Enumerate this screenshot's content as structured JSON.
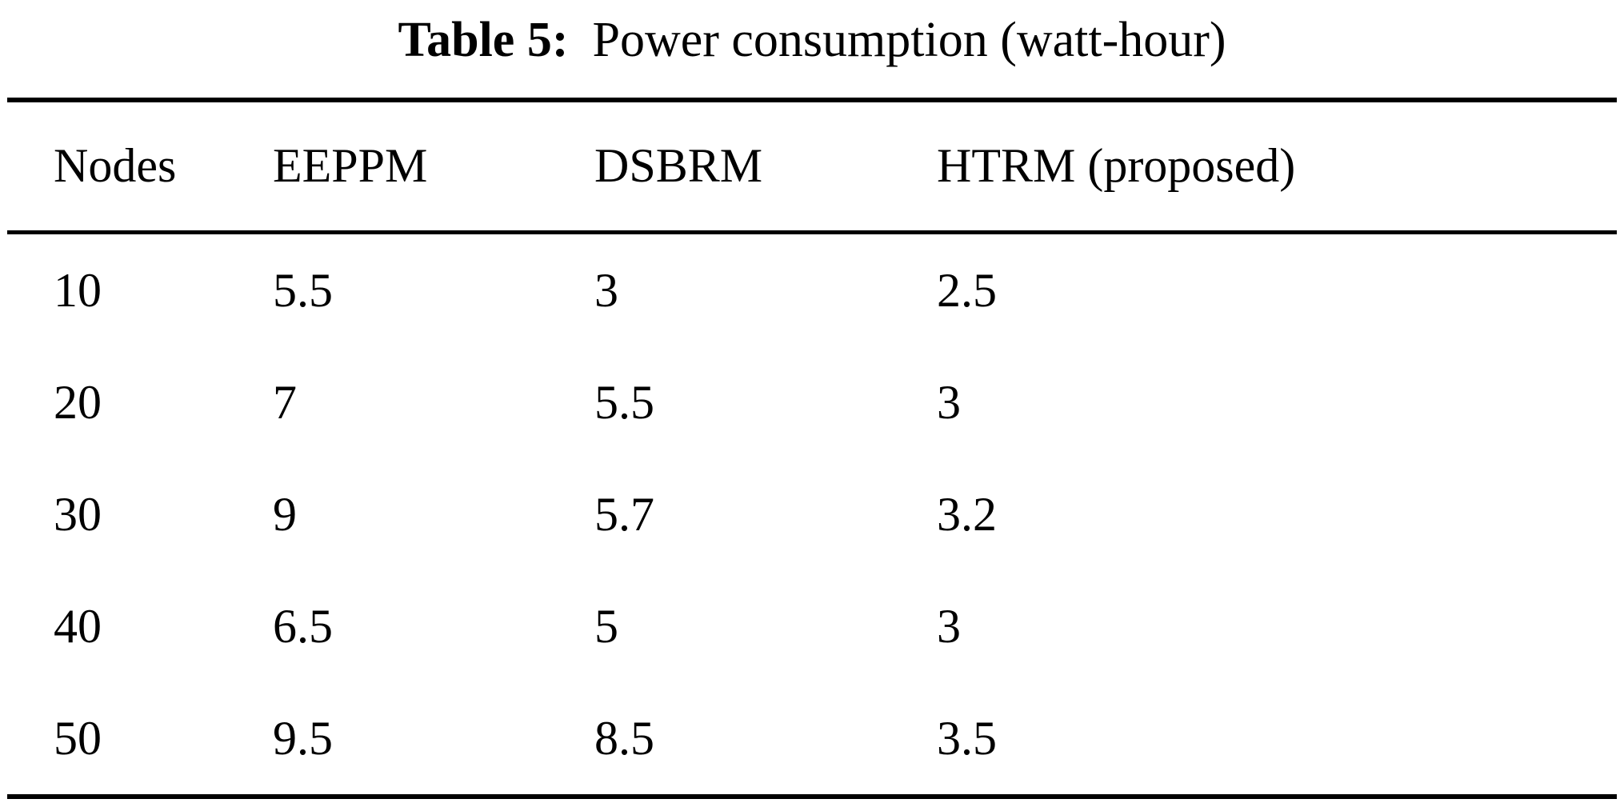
{
  "caption": {
    "label": "Table 5:",
    "title": "Power consumption (watt-hour)"
  },
  "table": {
    "columns": [
      "Nodes",
      "EEPPM",
      "DSBRM",
      "HTRM (proposed)"
    ],
    "rows": [
      [
        "10",
        "5.5",
        "3",
        "2.5"
      ],
      [
        "20",
        "7",
        "5.5",
        "3"
      ],
      [
        "30",
        "9",
        "5.7",
        "3.2"
      ],
      [
        "40",
        "6.5",
        "5",
        "3"
      ],
      [
        "50",
        "9.5",
        "8.5",
        "3.5"
      ]
    ]
  },
  "colors": {
    "text": "#000000",
    "background": "#ffffff",
    "rule": "#000000"
  }
}
